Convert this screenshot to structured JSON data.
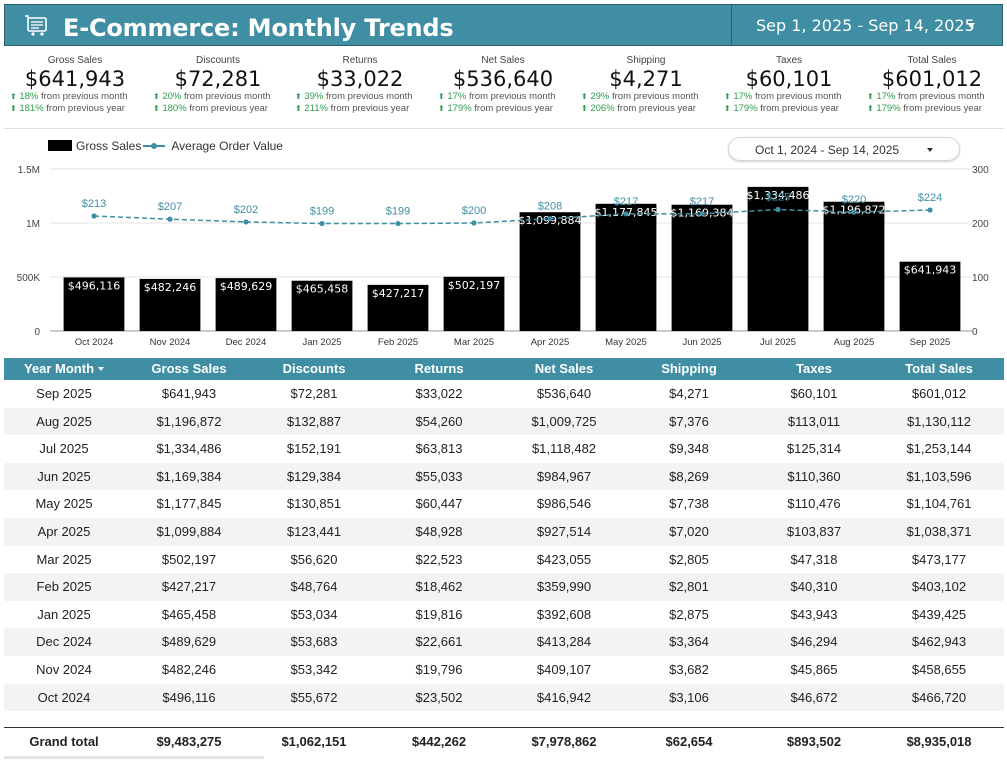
{
  "header": {
    "title": "E-Commerce: Monthly Trends",
    "date_range": "Sep 1, 2025 - Sep 14, 2025",
    "icon": "cart-icon"
  },
  "kpis": [
    {
      "label": "Gross Sales",
      "value": "$641,943",
      "delta1_pct": "18%",
      "delta1_text": "from previous month",
      "delta2_pct": "181%",
      "delta2_text": "from previous year"
    },
    {
      "label": "Discounts",
      "value": "$72,281",
      "delta1_pct": "20%",
      "delta1_text": "from previous month",
      "delta2_pct": "180%",
      "delta2_text": "from previous year"
    },
    {
      "label": "Returns",
      "value": "$33,022",
      "delta1_pct": "39%",
      "delta1_text": "from previous month",
      "delta2_pct": "211%",
      "delta2_text": "from previous year"
    },
    {
      "label": "Net Sales",
      "value": "$536,640",
      "delta1_pct": "17%",
      "delta1_text": "from previous month",
      "delta2_pct": "179%",
      "delta2_text": "from previous year"
    },
    {
      "label": "Shipping",
      "value": "$4,271",
      "delta1_pct": "29%",
      "delta1_text": "from previous month",
      "delta2_pct": "206%",
      "delta2_text": "from previous year"
    },
    {
      "label": "Taxes",
      "value": "$60,101",
      "delta1_pct": "17%",
      "delta1_text": "from previous month",
      "delta2_pct": "179%",
      "delta2_text": "from previous year"
    },
    {
      "label": "Total Sales",
      "value": "$601,012",
      "delta1_pct": "17%",
      "delta1_text": "from previous month",
      "delta2_pct": "179%",
      "delta2_text": "from previous year"
    }
  ],
  "chart_controls": {
    "legend_bar": "Gross Sales",
    "legend_line": "Average Order Value",
    "date_range": "Oct 1, 2024 - Sep 14, 2025"
  },
  "chart_data": {
    "type": "bar",
    "categories": [
      "Oct 2024",
      "Nov 2024",
      "Dec 2024",
      "Jan 2025",
      "Feb 2025",
      "Mar 2025",
      "Apr 2025",
      "May 2025",
      "Jun 2025",
      "Jul 2025",
      "Aug 2025",
      "Sep 2025"
    ],
    "series": [
      {
        "name": "Gross Sales",
        "type": "bar",
        "axis": "left",
        "values": [
          496116,
          482246,
          489629,
          465458,
          427217,
          502197,
          1099884,
          1177845,
          1169384,
          1334486,
          1196872,
          641943
        ],
        "labels": [
          "$496,116",
          "$482,246",
          "$489,629",
          "$465,458",
          "$427,217",
          "$502,197",
          "$1,099,884",
          "$1,177,845",
          "$1,169,384",
          "$1,334,486",
          "$1,196,872",
          "$641,943"
        ]
      },
      {
        "name": "Average Order Value",
        "type": "line",
        "axis": "right",
        "values": [
          213,
          207,
          202,
          199,
          199,
          200,
          208,
          217,
          217,
          225,
          220,
          224
        ],
        "labels": [
          "$213",
          "$207",
          "$202",
          "$199",
          "$199",
          "$200",
          "$208",
          "$217",
          "$217",
          "$225",
          "$220",
          "$224"
        ]
      }
    ],
    "left_ticks": [
      "0",
      "500K",
      "1M",
      "1.5M"
    ],
    "right_ticks": [
      "0",
      "100",
      "200",
      "300"
    ],
    "ylim_left": [
      0,
      1500000
    ],
    "ylim_right": [
      0,
      300
    ],
    "colors": {
      "bar": "#000000",
      "line": "#3f8ea3"
    }
  },
  "table": {
    "columns": [
      "Year Month",
      "Gross Sales",
      "Discounts",
      "Returns",
      "Net Sales",
      "Shipping",
      "Taxes",
      "Total Sales"
    ],
    "rows": [
      [
        "Sep 2025",
        "$641,943",
        "$72,281",
        "$33,022",
        "$536,640",
        "$4,271",
        "$60,101",
        "$601,012"
      ],
      [
        "Aug 2025",
        "$1,196,872",
        "$132,887",
        "$54,260",
        "$1,009,725",
        "$7,376",
        "$113,011",
        "$1,130,112"
      ],
      [
        "Jul 2025",
        "$1,334,486",
        "$152,191",
        "$63,813",
        "$1,118,482",
        "$9,348",
        "$125,314",
        "$1,253,144"
      ],
      [
        "Jun 2025",
        "$1,169,384",
        "$129,384",
        "$55,033",
        "$984,967",
        "$8,269",
        "$110,360",
        "$1,103,596"
      ],
      [
        "May 2025",
        "$1,177,845",
        "$130,851",
        "$60,447",
        "$986,546",
        "$7,738",
        "$110,476",
        "$1,104,761"
      ],
      [
        "Apr 2025",
        "$1,099,884",
        "$123,441",
        "$48,928",
        "$927,514",
        "$7,020",
        "$103,837",
        "$1,038,371"
      ],
      [
        "Mar 2025",
        "$502,197",
        "$56,620",
        "$22,523",
        "$423,055",
        "$2,805",
        "$47,318",
        "$473,177"
      ],
      [
        "Feb 2025",
        "$427,217",
        "$48,764",
        "$18,462",
        "$359,990",
        "$2,801",
        "$40,310",
        "$403,102"
      ],
      [
        "Jan 2025",
        "$465,458",
        "$53,034",
        "$19,816",
        "$392,608",
        "$2,875",
        "$43,943",
        "$439,425"
      ],
      [
        "Dec 2024",
        "$489,629",
        "$53,683",
        "$22,661",
        "$413,284",
        "$3,364",
        "$46,294",
        "$462,943"
      ],
      [
        "Nov 2024",
        "$482,246",
        "$53,342",
        "$19,796",
        "$409,107",
        "$3,682",
        "$45,865",
        "$458,655"
      ],
      [
        "Oct 2024",
        "$496,116",
        "$55,672",
        "$23,502",
        "$416,942",
        "$3,106",
        "$46,672",
        "$466,720"
      ]
    ],
    "total": [
      "Grand total",
      "$9,483,275",
      "$1,062,151",
      "$442,262",
      "$7,978,862",
      "$62,654",
      "$893,502",
      "$8,935,018"
    ]
  },
  "colors": {
    "accent": "#3f8ea3",
    "positive": "#2e9d4e"
  }
}
